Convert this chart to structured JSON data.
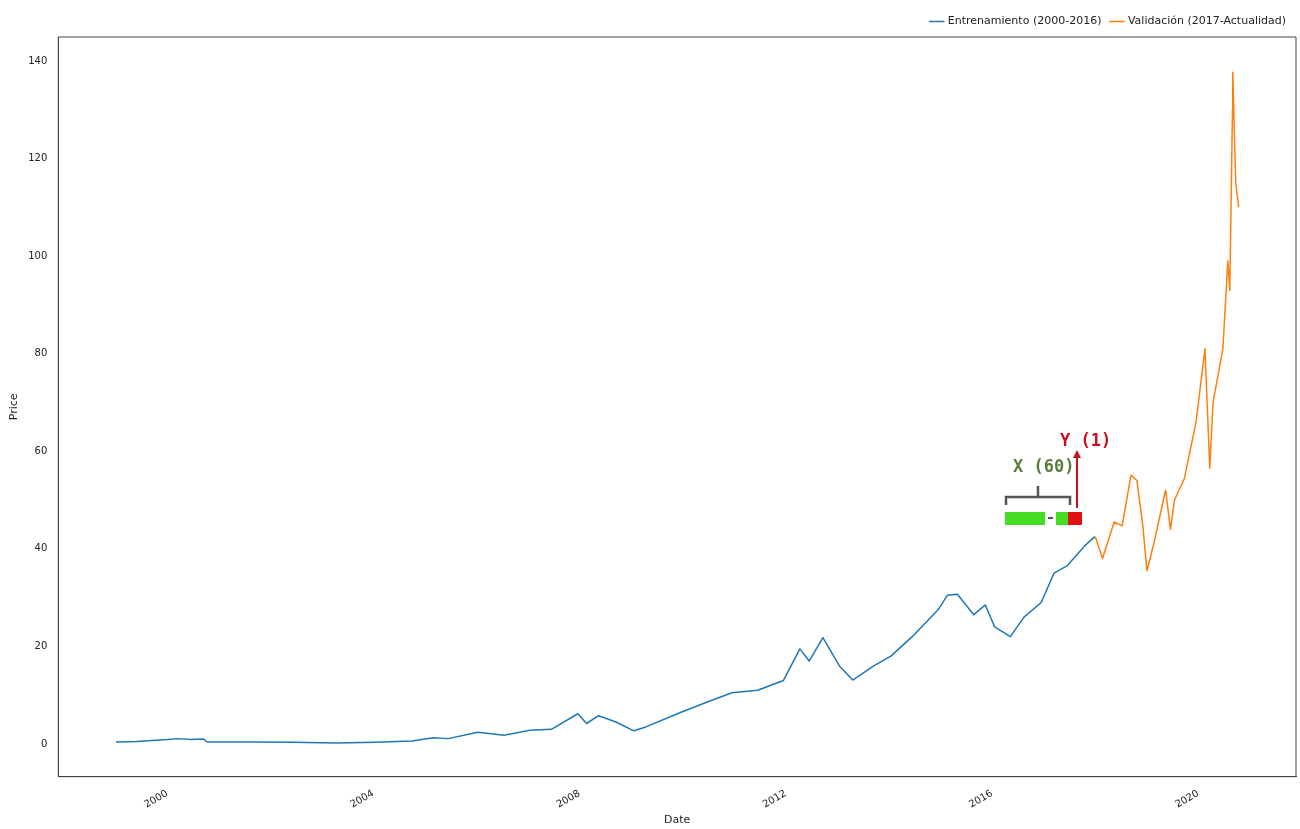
{
  "chart_data": {
    "type": "line",
    "xlabel": "Date",
    "ylabel": "Price",
    "xlim": [
      "1997-11-21",
      "2021-11-24"
    ],
    "ylim": [
      -6.7,
      144.9
    ],
    "xticks": [
      "2000",
      "2004",
      "2008",
      "2012",
      "2016",
      "2020"
    ],
    "yticks": [
      0,
      20,
      40,
      60,
      80,
      100,
      120,
      140
    ],
    "grid": false,
    "legend": "top right",
    "marker": "none",
    "line_style": "solid",
    "annotations": [
      "X (60)",
      "Y (1)"
    ],
    "series": [
      {
        "name": "Entrenamiento (2000-2016)",
        "color": "#1f77b4",
        "x": [
          "1999-01-04",
          "1999-06-01",
          "2000-01-03",
          "2000-03-20",
          "2000-06-15",
          "2000-09-15",
          "2000-10-10",
          "2001-06-01",
          "2002-06-01",
          "2003-04-15",
          "2004-01-15",
          "2004-10-01",
          "2005-03-01",
          "2005-06-15",
          "2006-01-10",
          "2006-07-15",
          "2007-01-15",
          "2007-06-15",
          "2007-12-20",
          "2008-02-20",
          "2008-05-15",
          "2008-09-15",
          "2009-01-20",
          "2009-04-15",
          "2009-12-20",
          "2010-06-15",
          "2010-12-15",
          "2011-06-15",
          "2011-12-15",
          "2012-04-10",
          "2012-06-15",
          "2012-09-20",
          "2013-01-15",
          "2013-04-20",
          "2013-09-15",
          "2014-01-15",
          "2014-06-15",
          "2014-12-15",
          "2015-02-20",
          "2015-05-01",
          "2015-08-25",
          "2015-11-15",
          "2016-01-20",
          "2016-05-10",
          "2016-08-15",
          "2016-12-15",
          "2017-03-15",
          "2017-06-15",
          "2017-10-15",
          "2017-12-29"
        ],
        "values": [
          0.4,
          0.5,
          0.9,
          1.1,
          0.9,
          1.0,
          0.4,
          0.4,
          0.35,
          0.2,
          0.35,
          0.6,
          1.3,
          1.1,
          2.4,
          1.8,
          2.8,
          3.0,
          6.2,
          4.2,
          5.8,
          4.5,
          2.7,
          3.5,
          6.5,
          8.5,
          10.5,
          11.0,
          13.0,
          19.5,
          17.0,
          21.8,
          16.0,
          13.1,
          16.0,
          18.0,
          22.0,
          27.5,
          30.5,
          30.7,
          26.5,
          28.5,
          24.0,
          22.0,
          26.0,
          29.0,
          35.0,
          36.5,
          40.5,
          42.5
        ]
      },
      {
        "name": "Validación (2017-Actualidad)",
        "color": "#ff7f0e",
        "x": [
          "2018-01-02",
          "2018-02-22",
          "2018-05-16",
          "2018-07-11",
          "2018-09-12",
          "2018-10-24",
          "2018-12-05",
          "2019-01-03",
          "2019-02-20",
          "2019-05-15",
          "2019-06-19",
          "2019-07-17",
          "2019-09-25",
          "2019-12-17",
          "2020-02-18",
          "2020-03-23",
          "2020-04-15",
          "2020-06-24",
          "2020-07-29",
          "2020-08-12",
          "2020-08-31",
          "2020-09-02",
          "2020-09-23",
          "2020-10-14"
        ],
        "values": [
          42.5,
          38.0,
          45.5,
          44.7,
          55.1,
          54.0,
          44.7,
          35.5,
          41.0,
          52.0,
          44.0,
          50.0,
          54.4,
          66.0,
          81.0,
          56.5,
          70.0,
          81.0,
          99.0,
          93.0,
          130.0,
          137.7,
          115.0,
          110.0
        ]
      }
    ]
  }
}
